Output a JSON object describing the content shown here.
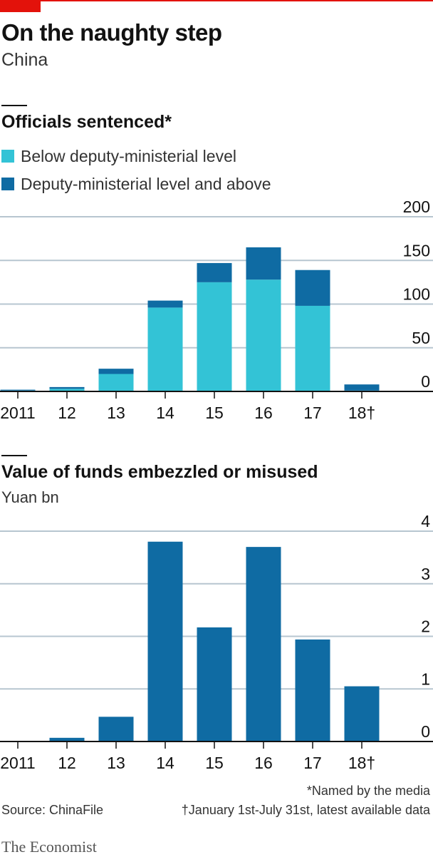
{
  "header": {
    "title": "On the naughty step",
    "subtitle": "China"
  },
  "colors": {
    "accent": "#e3120b",
    "light": "#33c3d6",
    "dark": "#0f6ba3",
    "grid": "#b7c6d0"
  },
  "chart1": {
    "title": "Officials sentenced*",
    "legend": [
      "Below deputy-ministerial level",
      "Deputy-ministerial level and above"
    ]
  },
  "chart2": {
    "title": "Value of funds embezzled or misused",
    "unit": "Yuan bn"
  },
  "footer": {
    "note1": "*Named by the media",
    "note2": "†January 1st-July 31st, latest available data",
    "source": "Source: ChinaFile",
    "brand": "The Economist"
  },
  "chart_data": [
    {
      "type": "bar",
      "stacked": true,
      "title": "Officials sentenced*",
      "categories": [
        "2011",
        "12",
        "13",
        "14",
        "15",
        "16",
        "17",
        "18†"
      ],
      "series": [
        {
          "name": "Below deputy-ministerial level",
          "values": [
            1,
            3,
            20,
            96,
            125,
            128,
            98,
            1
          ]
        },
        {
          "name": "Deputy-ministerial level and above",
          "values": [
            1,
            2,
            6,
            8,
            22,
            37,
            41,
            7
          ]
        }
      ],
      "ylim": [
        0,
        200
      ],
      "yticks": [
        "0",
        "50",
        "100",
        "150",
        "200"
      ],
      "grid": true,
      "legend": "top-left"
    },
    {
      "type": "bar",
      "title": "Value of funds embezzled or misused",
      "ylabel": "Yuan bn",
      "categories": [
        "2011",
        "12",
        "13",
        "14",
        "15",
        "16",
        "17",
        "18†"
      ],
      "series": [
        {
          "name": "",
          "values": [
            0,
            0.07,
            0.47,
            3.8,
            2.17,
            3.7,
            1.94,
            1.05
          ]
        }
      ],
      "ylim": [
        0,
        4
      ],
      "yticks": [
        "0",
        "1",
        "2",
        "3",
        "4"
      ],
      "grid": true
    }
  ]
}
